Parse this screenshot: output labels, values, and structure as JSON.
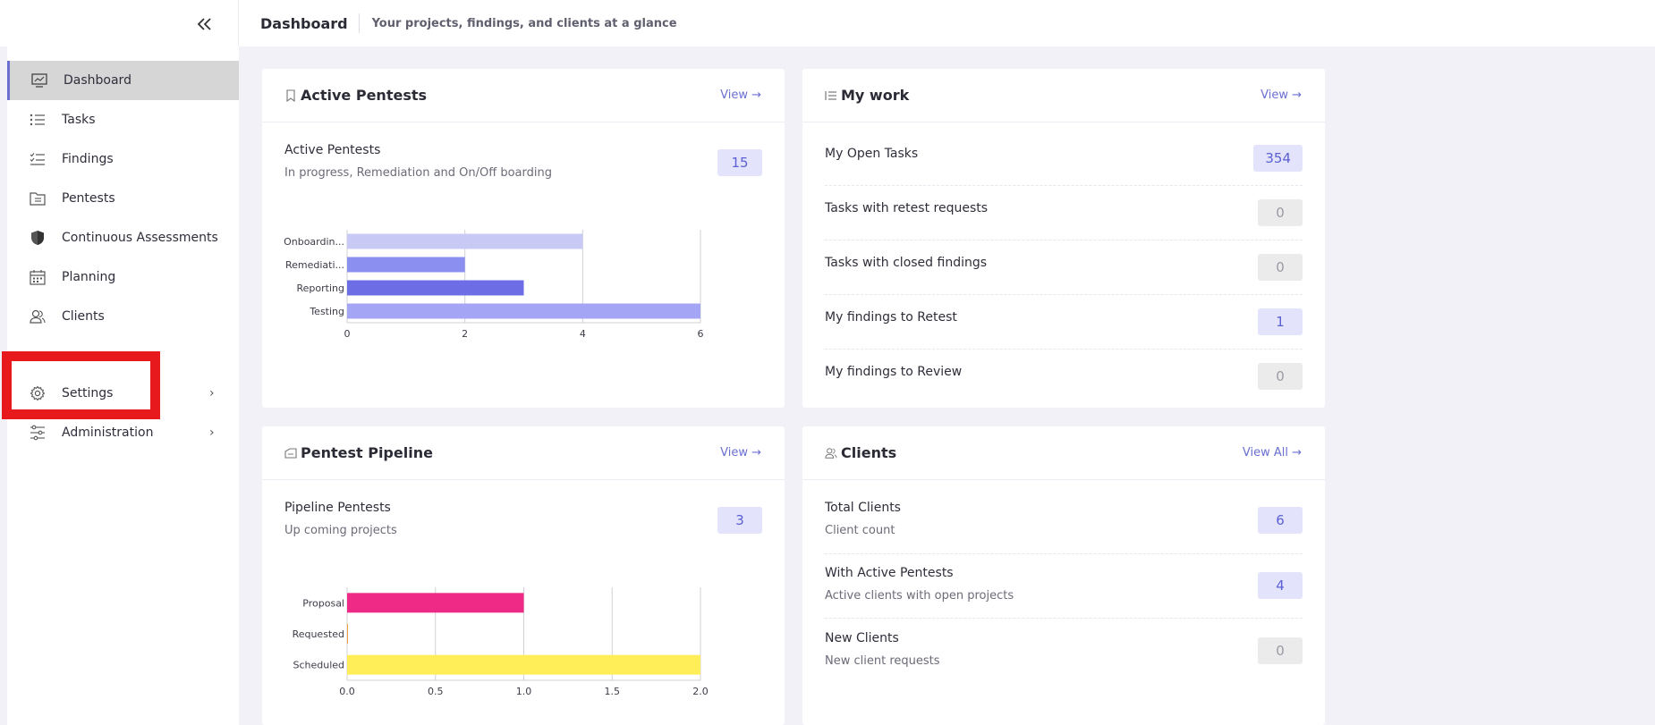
{
  "header": {
    "title": "Dashboard",
    "subtitle": "Your projects, findings, and clients at a glance"
  },
  "sidebar": {
    "items": [
      {
        "label": "Dashboard",
        "icon": "dashboard-icon",
        "active": true
      },
      {
        "label": "Tasks",
        "icon": "list-icon"
      },
      {
        "label": "Findings",
        "icon": "checklist-icon"
      },
      {
        "label": "Pentests",
        "icon": "folder-icon"
      },
      {
        "label": "Continuous Assessments",
        "icon": "shield-icon"
      },
      {
        "label": "Planning",
        "icon": "calendar-icon"
      },
      {
        "label": "Clients",
        "icon": "users-icon"
      },
      {
        "label": "Settings",
        "icon": "gear-icon"
      },
      {
        "label": "Administration",
        "icon": "sliders-icon"
      }
    ]
  },
  "cards": {
    "active_pentests": {
      "title": "Active Pentests",
      "view_label": "View →",
      "stat_title": "Active Pentests",
      "stat_sub": "In progress, Remediation and On/Off boarding",
      "count": "15"
    },
    "my_work": {
      "title": "My work",
      "view_label": "View →",
      "rows": [
        {
          "label": "My Open Tasks",
          "value": "354",
          "style": "purple"
        },
        {
          "label": "Tasks with retest requests",
          "value": "0",
          "style": "grey"
        },
        {
          "label": "Tasks with closed findings",
          "value": "0",
          "style": "grey"
        },
        {
          "label": "My findings to Retest",
          "value": "1",
          "style": "purple"
        },
        {
          "label": "My findings to Review",
          "value": "0",
          "style": "grey"
        }
      ]
    },
    "pentest_pipeline": {
      "title": "Pentest Pipeline",
      "view_label": "View →",
      "stat_title": "Pipeline Pentests",
      "stat_sub": "Up coming projects",
      "count": "3"
    },
    "clients": {
      "title": "Clients",
      "view_label": "View All →",
      "rows": [
        {
          "label": "Total Clients",
          "sub": "Client count",
          "value": "6",
          "style": "purple"
        },
        {
          "label": "With Active Pentests",
          "sub": "Active clients with open projects",
          "value": "4",
          "style": "purple"
        },
        {
          "label": "New Clients",
          "sub": "New client requests",
          "value": "0",
          "style": "grey"
        }
      ]
    }
  },
  "chart_data": [
    {
      "type": "bar",
      "orientation": "horizontal",
      "categories": [
        "Onboardin...",
        "Remediati...",
        "Reporting",
        "Testing"
      ],
      "values": [
        4,
        2,
        3,
        6
      ],
      "colors": [
        "#c9c9f6",
        "#8a8ff0",
        "#6d6de6",
        "#a5a5f6"
      ],
      "xlim": [
        0,
        6
      ],
      "xticks": [
        "0",
        "2",
        "4",
        "6"
      ],
      "grid": true
    },
    {
      "type": "bar",
      "orientation": "horizontal",
      "categories": [
        "Proposal",
        "Requested",
        "Scheduled"
      ],
      "values": [
        1,
        0,
        2
      ],
      "colors": [
        "#ef2a86",
        "#f2a03c",
        "#ffee58"
      ],
      "xlim": [
        0,
        2
      ],
      "xticks": [
        "0.0",
        "0.5",
        "1.0",
        "1.5",
        "2.0"
      ],
      "grid": true
    }
  ]
}
